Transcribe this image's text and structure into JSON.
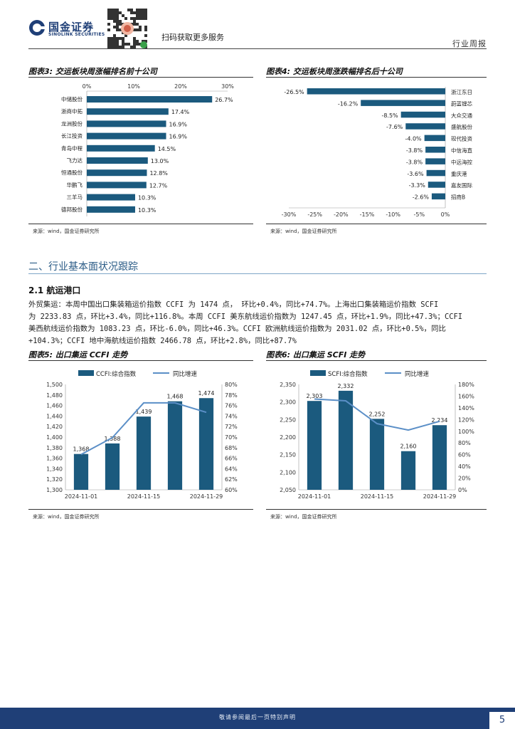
{
  "header": {
    "logo_cn": "国金证券",
    "logo_en": "SINOLINK SECURITIES",
    "qr_text": "扫码获取更多服务",
    "report_type": "行业周报"
  },
  "fig3": {
    "title": "图表3: 交运板块周涨幅排名前十公司",
    "source": "来源：wind，国金证券研究所"
  },
  "fig4": {
    "title": "图表4: 交运板块周涨跌幅排名后十公司",
    "source": "来源：wind，国金证券研究所"
  },
  "section": {
    "title": "二、行业基本面状况跟踪",
    "subtitle": "2.1 航运港口",
    "para_lines": [
      "外贸集运：本周中国出口集装箱运价指数 CCFI 为 1474 点， 环比+0.4%，同比+74.7%。上海出口集装箱运价指数 SCFI",
      "为 2233.83 点，环比+3.4%，同比+116.8%。本周 CCFI 美东航线运价指数为 1247.45 点，环比+1.9%，同比+47.3%；CCFI",
      "美西航线运价指数为 1083.23 点，环比-6.0%，同比+46.3%。CCFI 欧洲航线运价指数为 2031.02 点，环比+0.5%，同比",
      "+104.3%；CCFI 地中海航线运价指数 2466.78 点，环比+2.8%，同比+87.7%"
    ]
  },
  "fig5": {
    "title": "图表5: 出口集运 CCFI 走势",
    "source": "来源：wind，国金证券研究所"
  },
  "fig6": {
    "title": "图表6: 出口集运 SCFI 走势",
    "source": "来源：wind，国金证券研究所"
  },
  "footer": {
    "disclaimer": "敬请参阅最后一页特别声明",
    "page_number": "5"
  },
  "colors": {
    "bar": "#1b5a7e",
    "line": "#5b8fc7",
    "brand": "#1f3f77"
  },
  "chart_data": [
    {
      "id": "fig3",
      "type": "bar",
      "orientation": "horizontal",
      "categories": [
        "中储股份",
        "浙商中拓",
        "龙洲股份",
        "长江投资",
        "青岛中程",
        "飞力达",
        "恒通股份",
        "华鹏飞",
        "三羊马",
        "德邦股份"
      ],
      "values": [
        26.7,
        17.4,
        16.9,
        16.9,
        14.5,
        13.0,
        12.8,
        12.7,
        10.3,
        10.3
      ],
      "value_labels": [
        "26.7%",
        "17.4%",
        "16.9%",
        "16.9%",
        "14.5%",
        "13.0%",
        "12.8%",
        "12.7%",
        "10.3%",
        "10.3%"
      ],
      "xlim": [
        0,
        30
      ],
      "xticks": [
        "0%",
        "10%",
        "20%",
        "30%"
      ],
      "axis_position": "top"
    },
    {
      "id": "fig4",
      "type": "bar",
      "orientation": "horizontal",
      "categories": [
        "浙江东日",
        "蔚蓝锂芯",
        "大众交通",
        "盛航股份",
        "现代投资",
        "中信海直",
        "中远海控",
        "重庆港",
        "嘉友国际",
        "招商B"
      ],
      "values": [
        -26.5,
        -16.2,
        -8.5,
        -7.6,
        -4.0,
        -3.8,
        -3.8,
        -3.6,
        -3.3,
        -2.6
      ],
      "value_labels": [
        "-26.5%",
        "-16.2%",
        "-8.5%",
        "-7.6%",
        "-4.0%",
        "-3.8%",
        "-3.8%",
        "-3.6%",
        "-3.3%",
        "-2.6%"
      ],
      "xlim": [
        -30,
        0
      ],
      "xticks": [
        "-30%",
        "-25%",
        "-20%",
        "-15%",
        "-10%",
        "-5%",
        "0%"
      ],
      "axis_position": "bottom"
    },
    {
      "id": "fig5",
      "type": "bar+line",
      "categories": [
        "2024-11-01",
        "2024-11-08",
        "2024-11-15",
        "2024-11-22",
        "2024-11-29"
      ],
      "xtick_labels": [
        "2024-11-01",
        "",
        "2024-11-15",
        "",
        "2024-11-29"
      ],
      "series": [
        {
          "name": "CCFI:综合指数",
          "type": "bar",
          "axis": "left",
          "values": [
            1368,
            1388,
            1439,
            1468,
            1474
          ],
          "labels": [
            "1,368",
            "1,388",
            "1,439",
            "1,468",
            "1,474"
          ]
        },
        {
          "name": "同比增速",
          "type": "line",
          "axis": "right",
          "values": [
            66.7,
            69.9,
            76.5,
            76.5,
            74.7
          ]
        }
      ],
      "ylim_left": [
        1300,
        1500
      ],
      "yticks_left": [
        "1,300",
        "1,320",
        "1,340",
        "1,360",
        "1,380",
        "1,400",
        "1,420",
        "1,440",
        "1,460",
        "1,480",
        "1,500"
      ],
      "ylim_right": [
        60,
        80
      ],
      "yticks_right": [
        "60%",
        "62%",
        "64%",
        "66%",
        "68%",
        "70%",
        "72%",
        "74%",
        "76%",
        "78%",
        "80%"
      ],
      "legend": "top"
    },
    {
      "id": "fig6",
      "type": "bar+line",
      "categories": [
        "2024-11-01",
        "2024-11-08",
        "2024-11-15",
        "2024-11-22",
        "2024-11-29"
      ],
      "xtick_labels": [
        "2024-11-01",
        "",
        "2024-11-15",
        "",
        "2024-11-29"
      ],
      "series": [
        {
          "name": "SCFI:综合指数",
          "type": "bar",
          "axis": "left",
          "values": [
            2303,
            2332,
            2252,
            2160,
            2234
          ],
          "labels": [
            "2,303",
            "2,332",
            "2,252",
            "2,160",
            "2,234"
          ]
        },
        {
          "name": "同比增速",
          "type": "line",
          "axis": "right",
          "values": [
            155,
            152,
            113,
            102,
            117
          ]
        }
      ],
      "ylim_left": [
        2050,
        2350
      ],
      "yticks_left": [
        "2,050",
        "2,100",
        "2,150",
        "2,200",
        "2,250",
        "2,300",
        "2,350"
      ],
      "ylim_right": [
        0,
        180
      ],
      "yticks_right": [
        "0%",
        "20%",
        "40%",
        "60%",
        "80%",
        "100%",
        "120%",
        "140%",
        "160%",
        "180%"
      ],
      "legend": "top"
    }
  ]
}
